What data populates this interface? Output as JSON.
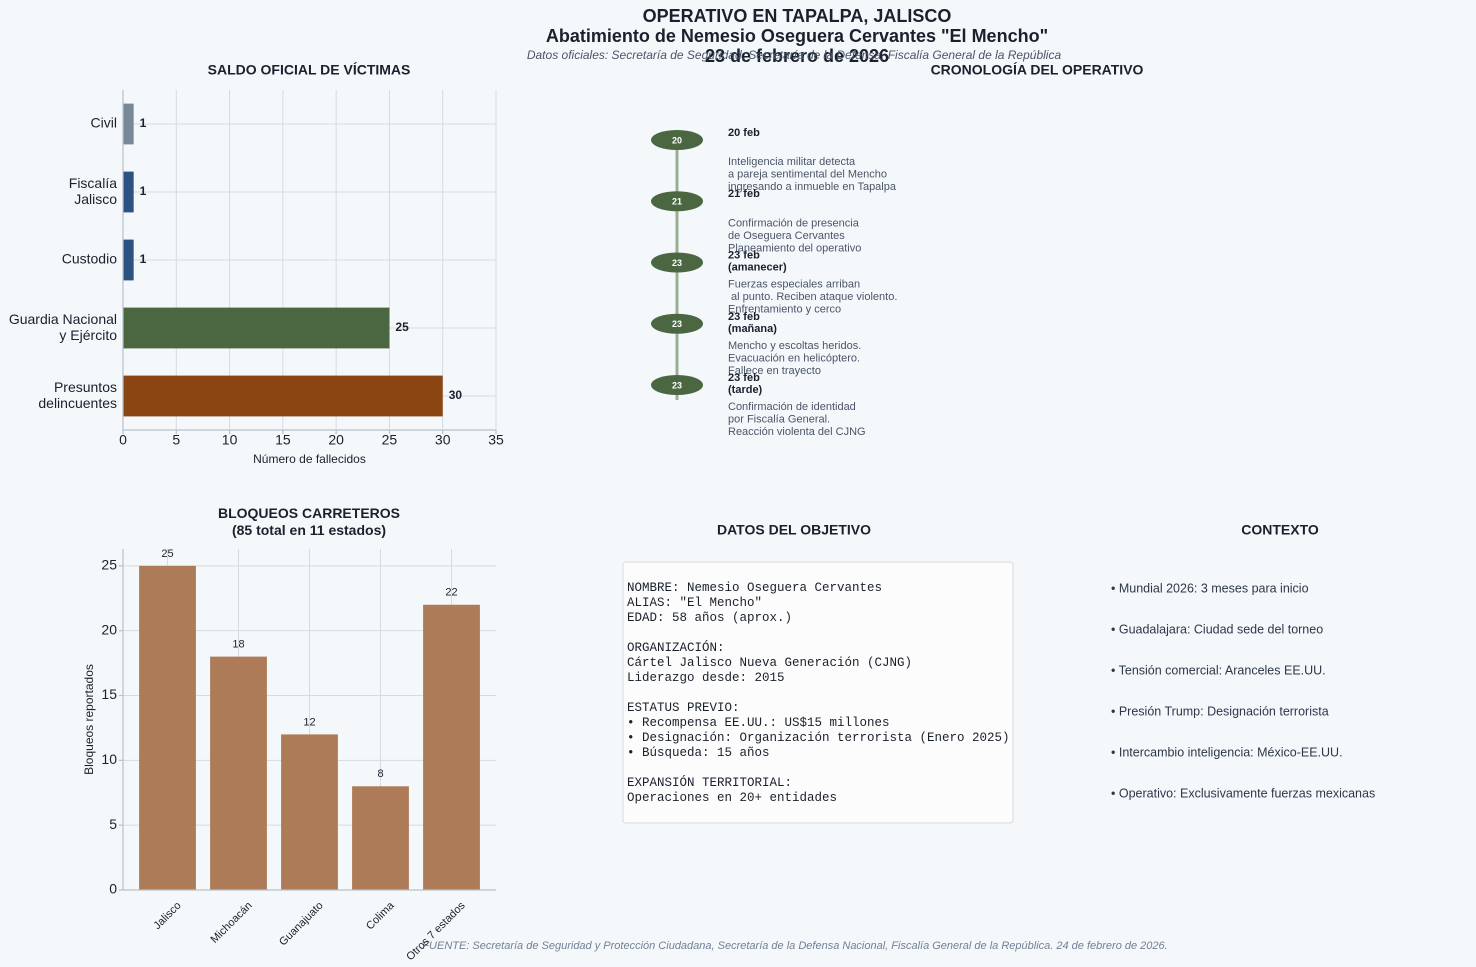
{
  "title": "OPERATIVO EN TAPALPA, JALISCO\nAbatimiento de Nemesio Oseguera Cervantes \"El Mencho\"\n23 de febrero de 2026",
  "subtitle": "Datos oficiales: Secretaría de Seguridad, Secretaría de la Defensa, Fiscalía General de la República",
  "chart_data": [
    {
      "type": "hbar",
      "title": "SALDO OFICIAL DE VÍCTIMAS",
      "categories": [
        "Civil",
        "Fiscalía\nJalisco",
        "Custodio",
        "Guardia Nacional\ny Ejército",
        "Presuntos\ndelincuentes"
      ],
      "values": [
        1,
        1,
        1,
        25,
        30
      ],
      "colors": [
        "#778899",
        "#2c5282",
        "#2c5282",
        "#4a6741",
        "#8b4513"
      ],
      "xlim": [
        0,
        35
      ],
      "xticks": [
        0,
        5,
        10,
        15,
        20,
        25,
        30,
        35
      ],
      "xlabel": "Número de fallecidos",
      "grid": true
    },
    {
      "type": "bar",
      "title": "BLOQUEOS CARRETEROS\n(85 total en 11 estados)",
      "categories": [
        "Jalisco",
        "Michoacán",
        "Guanajuato",
        "Colima",
        "Otros 7 estados"
      ],
      "values": [
        25,
        18,
        12,
        8,
        22
      ],
      "color": "#ad7b57",
      "ylim": [
        0,
        26.3
      ],
      "yticks": [
        0,
        5,
        10,
        15,
        20,
        25
      ],
      "ylabel": "Bloqueos reportados",
      "grid": true
    }
  ],
  "timeline": {
    "title": "CRONOLOGÍA DEL OPERATIVO",
    "events": [
      {
        "day": "20",
        "date": "20 feb",
        "text": "Inteligencia militar detecta\na pareja sentimental del Mencho\ningresando a inmueble en Tapalpa"
      },
      {
        "day": "21",
        "date": "21 feb",
        "text": "Confirmación de presencia\nde Oseguera Cervantes\nPlaneamiento del operativo"
      },
      {
        "day": "23",
        "date": "23 feb\n(amanecer)",
        "text": "Fuerzas especiales arriban\n al punto. Reciben ataque violento.\nEnfrentamiento y cerco"
      },
      {
        "day": "23",
        "date": "23 feb\n(mañana)",
        "text": "Mencho y escoltas heridos.\nEvacuación en helicóptero.\nFallece en trayecto"
      },
      {
        "day": "23",
        "date": "23 feb\n(tarde)",
        "text": "Confirmación de identidad\npor Fiscalía General.\nReacción violenta del CJNG"
      }
    ]
  },
  "target": {
    "title": "DATOS DEL OBJETIVO",
    "text": "NOMBRE: Nemesio Oseguera Cervantes\nALIAS: \"El Mencho\"\nEDAD: 58 años (aprox.)\n\nORGANIZACIÓN:\nCártel Jalisco Nueva Generación (CJNG)\nLiderazgo desde: 2015\n\nESTATUS PREVIO:\n• Recompensa EE.UU.: US$15 millones\n• Designación: Organización terrorista (Enero 2025)\n• Búsqueda: 15 años\n\nEXPANSIÓN TERRITORIAL:\nOperaciones en 20+ entidades"
  },
  "context": {
    "title": "CONTEXTO",
    "items": [
      "• Mundial 2026: 3 meses para inicio",
      "• Guadalajara: Ciudad sede del torneo",
      "• Tensión comercial: Aranceles EE.UU.",
      "• Presión Trump: Designación terrorista",
      "• Intercambio inteligencia: México-EE.UU.",
      "• Operativo: Exclusivamente fuerzas mexicanas"
    ]
  },
  "footer": "FUENTE: Secretaría de Seguridad y Protección Ciudadana, Secretaría de la Defensa Nacional, Fiscalía General de la República. 24 de febrero de 2026."
}
